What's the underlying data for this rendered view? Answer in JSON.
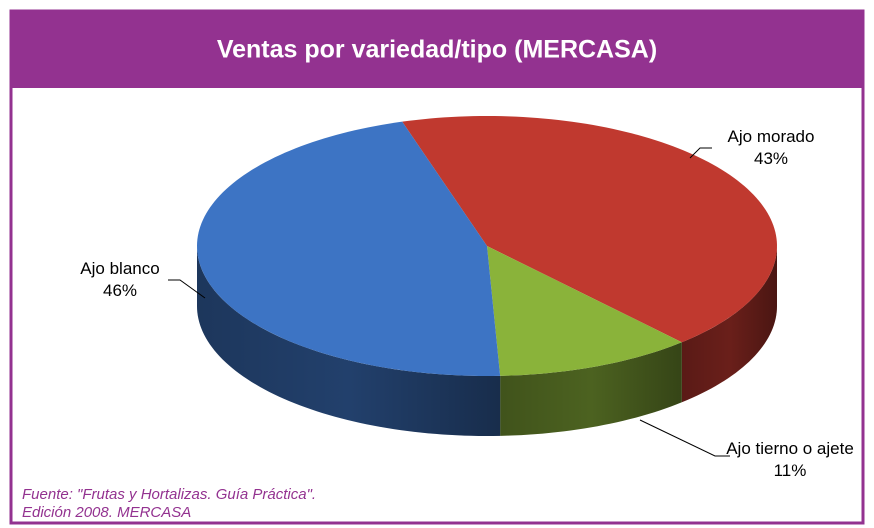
{
  "chart_data": {
    "type": "pie",
    "title": "Ventas por variedad/tipo (MERCASA)",
    "categories": [
      "Ajo morado",
      "Ajo tierno o ajete",
      "Ajo blanco"
    ],
    "values": [
      43,
      11,
      46
    ],
    "value_labels": [
      "43%",
      "11%",
      "46%"
    ],
    "colors": [
      "#c0392f",
      "#8ab33a",
      "#3d74c4"
    ],
    "source": [
      "Fuente: \"Frutas y Hortalizas. Guía Práctica\".",
      "Edición 2008. MERCASA"
    ]
  }
}
